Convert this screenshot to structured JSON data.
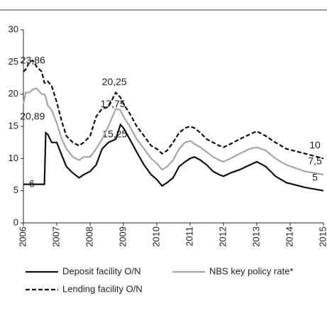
{
  "chart_data": {
    "type": "line",
    "x": [
      2006,
      2006.07,
      2006.18,
      2006.28,
      2006.4,
      2006.55,
      2006.63,
      2006.67,
      2006.73,
      2006.85,
      2007,
      2007.15,
      2007.29,
      2007.48,
      2007.67,
      2007.81,
      2008,
      2008.18,
      2008.36,
      2008.55,
      2008.77,
      2008.91,
      2009,
      2009.19,
      2009.4,
      2009.62,
      2009.83,
      2010,
      2010.16,
      2010.31,
      2010.49,
      2010.67,
      2010.85,
      2011,
      2011.13,
      2011.31,
      2011.5,
      2011.69,
      2011.87,
      2012,
      2012.21,
      2012.48,
      2012.79,
      2013,
      2013.27,
      2013.56,
      2013.89,
      2014.45,
      2015
    ],
    "series": [
      {
        "name": "Deposit facility O/N",
        "color": "#111111",
        "dash": "solid",
        "values": [
          6,
          6,
          6,
          6,
          6,
          6,
          6,
          14,
          13.75,
          12.5,
          12.5,
          10.5,
          8.75,
          7.75,
          7,
          7.5,
          8,
          9,
          11.5,
          12.5,
          13,
          15.25,
          14.75,
          13,
          11,
          9,
          7.5,
          6.75,
          5.75,
          6.25,
          7,
          8.75,
          9.5,
          10,
          10.25,
          9.75,
          9,
          8,
          7.5,
          7.25,
          7.75,
          8.25,
          9,
          9.5,
          8.75,
          7.25,
          6.25,
          5.5,
          5
        ],
        "value_labels": [
          "6",
          null,
          null,
          null,
          null,
          null,
          null,
          null,
          null,
          null,
          null,
          null,
          null,
          null,
          null,
          null,
          null,
          null,
          null,
          null,
          null,
          "15,25",
          null,
          null,
          null,
          null,
          null,
          null,
          null,
          null,
          null,
          null,
          null,
          null,
          null,
          null,
          null,
          null,
          null,
          null,
          null,
          null,
          null,
          null,
          null,
          null,
          null,
          null,
          "5"
        ]
      },
      {
        "name": "NBS key policy rate*",
        "color": "#a6a6a6",
        "dash": "solid",
        "values": [
          18.5,
          20.25,
          20.25,
          20.75,
          20.89,
          20,
          20,
          19.5,
          18.25,
          17.5,
          15.5,
          13,
          11.5,
          10.25,
          9.75,
          10.25,
          10.25,
          11.5,
          13,
          15,
          17.75,
          17.5,
          16.5,
          15,
          13,
          11.5,
          10,
          9.25,
          8.25,
          8.75,
          9.75,
          11.5,
          12.5,
          12.75,
          12.25,
          11.75,
          11,
          10.25,
          9.75,
          9.5,
          10,
          10.75,
          11.5,
          11.75,
          11.25,
          10,
          9,
          8,
          7.5
        ],
        "value_labels": [
          null,
          null,
          null,
          null,
          "20,89",
          null,
          null,
          null,
          null,
          null,
          null,
          null,
          null,
          null,
          null,
          null,
          null,
          null,
          null,
          null,
          "17,75",
          null,
          null,
          null,
          null,
          null,
          null,
          null,
          null,
          null,
          null,
          null,
          null,
          null,
          null,
          null,
          null,
          null,
          null,
          null,
          null,
          null,
          null,
          null,
          null,
          null,
          null,
          null,
          "7,5"
        ]
      },
      {
        "name": "Lending facility O/N",
        "color": "#111111",
        "dash": "dashed",
        "values": [
          23.5,
          23.86,
          25,
          25.25,
          24.25,
          23.5,
          21.75,
          21.75,
          22,
          21.25,
          18.75,
          15.75,
          13.5,
          12.5,
          12,
          12.5,
          13.5,
          16.5,
          17.75,
          18,
          20.25,
          19.5,
          18.5,
          17,
          15,
          13.5,
          12,
          11.5,
          10.75,
          11.25,
          12.5,
          14,
          14.75,
          15,
          14.75,
          14,
          13,
          12.5,
          12,
          11.75,
          12.25,
          13,
          13.75,
          14.25,
          13.5,
          12.5,
          11.5,
          10.75,
          10
        ],
        "value_labels": [
          null,
          "23,86",
          null,
          null,
          null,
          null,
          null,
          null,
          null,
          null,
          null,
          null,
          null,
          null,
          null,
          null,
          null,
          null,
          null,
          null,
          "20,25",
          null,
          null,
          null,
          null,
          null,
          null,
          null,
          null,
          null,
          null,
          null,
          null,
          null,
          null,
          null,
          null,
          null,
          null,
          null,
          null,
          null,
          null,
          null,
          null,
          null,
          null,
          null,
          "10"
        ]
      }
    ],
    "xlim": [
      2006,
      2015
    ],
    "xticks": [
      2006,
      2007,
      2008,
      2009,
      2010,
      2011,
      2012,
      2013,
      2014,
      2015
    ],
    "ylim": [
      0,
      30
    ],
    "yticks": [
      0,
      5,
      10,
      15,
      20,
      25,
      30
    ],
    "grid": false
  }
}
